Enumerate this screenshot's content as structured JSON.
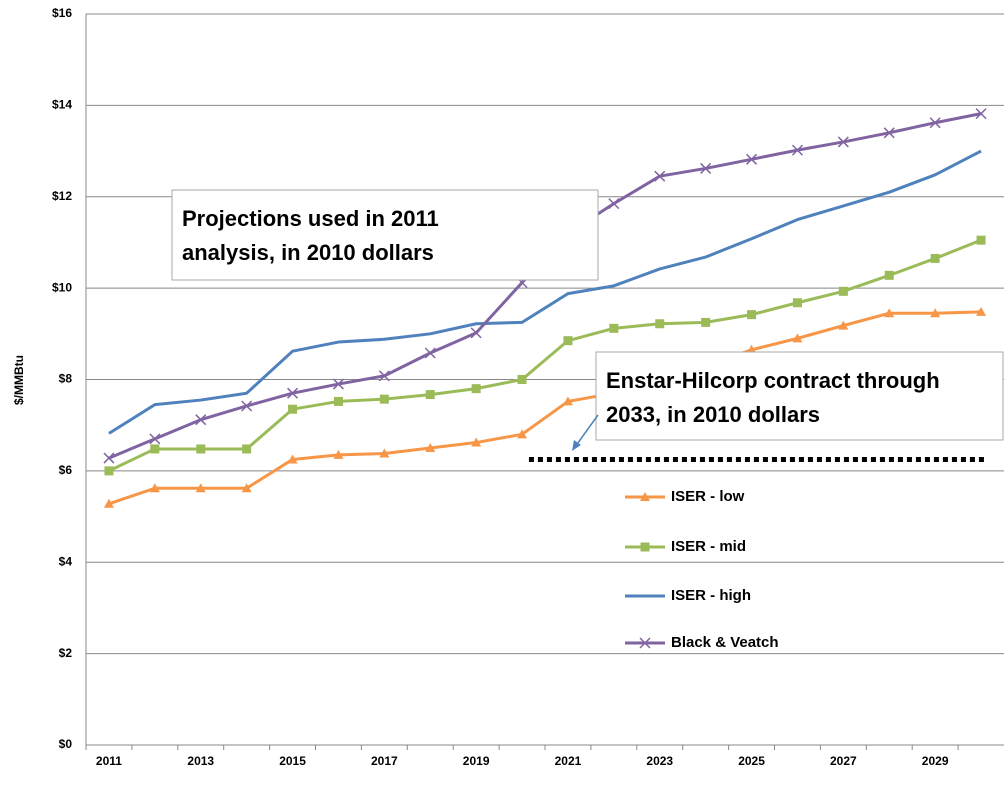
{
  "chart_data": {
    "type": "line",
    "ylabel": "$/MMBtu",
    "categories": [
      "2011",
      null,
      "2013",
      null,
      "2015",
      null,
      "2017",
      null,
      "2019",
      null,
      "2021",
      null,
      "2023",
      null,
      "2025",
      null,
      "2027",
      null,
      "2029",
      null
    ],
    "series": [
      {
        "name": "ISER - low",
        "color": "#f79646",
        "marker": "triangle",
        "values": [
          5.28,
          5.62,
          5.62,
          5.62,
          6.25,
          6.35,
          6.38,
          6.5,
          6.62,
          6.8,
          7.52,
          7.7,
          8.0,
          8.3,
          8.65,
          8.9,
          9.18,
          9.45,
          9.45,
          9.48
        ]
      },
      {
        "name": "ISER - mid",
        "color": "#9bbb59",
        "marker": "square",
        "values": [
          6.0,
          6.48,
          6.48,
          6.48,
          7.35,
          7.52,
          7.57,
          7.67,
          7.8,
          8.0,
          8.85,
          9.12,
          9.22,
          9.25,
          9.42,
          9.68,
          9.93,
          10.28,
          10.65,
          11.05
        ]
      },
      {
        "name": "ISER - high",
        "color": "#4f81bd",
        "marker": "none",
        "values": [
          6.82,
          7.45,
          7.55,
          7.7,
          8.62,
          8.82,
          8.88,
          9.0,
          9.22,
          9.25,
          9.88,
          10.05,
          10.42,
          10.68,
          11.08,
          11.5,
          11.8,
          12.1,
          12.48,
          13.0
        ]
      },
      {
        "name": "Black & Veatch",
        "color": "#8064a2",
        "marker": "x",
        "values": [
          6.28,
          6.7,
          7.12,
          7.42,
          7.7,
          7.9,
          8.08,
          8.58,
          9.02,
          10.12,
          11.2,
          11.85,
          12.45,
          12.62,
          12.82,
          13.02,
          13.2,
          13.4,
          13.62,
          13.82
        ]
      }
    ],
    "reference_line": 6.25,
    "annotations": [
      {
        "lines": [
          "Projections used in 2011",
          "analysis, in 2010 dollars"
        ]
      },
      {
        "lines": [
          "Enstar-Hilcorp contract through",
          "2033, in 2010 dollars"
        ]
      }
    ],
    "ylim": [
      0,
      16
    ],
    "yticks": [
      {
        "value": 0,
        "label": "$0"
      },
      {
        "value": 2,
        "label": "$2"
      },
      {
        "value": 4,
        "label": "$4"
      },
      {
        "value": 6,
        "label": "$6"
      },
      {
        "value": 8,
        "label": "$8"
      },
      {
        "value": 10,
        "label": "$10"
      },
      {
        "value": 12,
        "label": "$12"
      },
      {
        "value": 14,
        "label": "$14"
      },
      {
        "value": 16,
        "label": "$16"
      }
    ],
    "grid": true
  }
}
